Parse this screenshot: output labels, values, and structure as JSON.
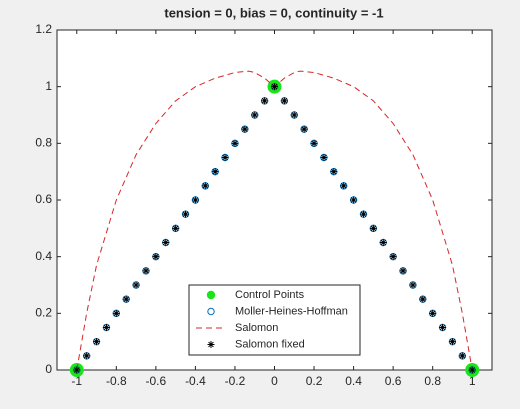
{
  "chart_data": {
    "type": "line",
    "title": "tension = 0, bias = 0, continuity = -1",
    "xlim": [
      -1.1,
      1.1
    ],
    "ylim": [
      0,
      1.2
    ],
    "xticks": [
      -1,
      -0.8,
      -0.6,
      -0.4,
      -0.2,
      0,
      0.2,
      0.4,
      0.6,
      0.8,
      1
    ],
    "yticks": [
      0,
      0.2,
      0.4,
      0.6,
      0.8,
      1,
      1.2
    ],
    "legend": "south",
    "series": [
      {
        "name": "Control Points",
        "color": "#19e619",
        "marker": "filled-circle",
        "line": "none",
        "x": [
          -1,
          0,
          1
        ],
        "values": [
          0,
          1,
          0
        ]
      },
      {
        "name": "Moller-Heines-Hoffman",
        "color": "#0072bd",
        "marker": "circle",
        "line": "none",
        "x": [
          -1,
          -0.95,
          -0.9,
          -0.85,
          -0.8,
          -0.75,
          -0.7,
          -0.65,
          -0.6,
          -0.55,
          -0.5,
          -0.45,
          -0.4,
          -0.35,
          -0.3,
          -0.25,
          -0.2,
          -0.15,
          -0.1,
          -0.05,
          0,
          0.05,
          0.1,
          0.15,
          0.2,
          0.25,
          0.3,
          0.35,
          0.4,
          0.45,
          0.5,
          0.55,
          0.6,
          0.65,
          0.7,
          0.75,
          0.8,
          0.85,
          0.9,
          0.95,
          1
        ],
        "values": [
          0,
          0.05,
          0.1,
          0.15,
          0.2,
          0.25,
          0.3,
          0.35,
          0.4,
          0.45,
          0.5,
          0.55,
          0.6,
          0.65,
          0.7,
          0.75,
          0.8,
          0.85,
          0.9,
          0.95,
          1,
          0.95,
          0.9,
          0.85,
          0.8,
          0.75,
          0.7,
          0.65,
          0.6,
          0.55,
          0.5,
          0.45,
          0.4,
          0.35,
          0.3,
          0.25,
          0.2,
          0.15,
          0.1,
          0.05,
          0
        ]
      },
      {
        "name": "Salomon",
        "color": "#d62728",
        "marker": "none",
        "line": "dashed",
        "x": [
          -1,
          -0.95,
          -0.9,
          -0.8,
          -0.7,
          -0.6,
          -0.5,
          -0.4,
          -0.3,
          -0.2,
          -0.13,
          -0.1,
          -0.05,
          0,
          0.05,
          0.1,
          0.13,
          0.2,
          0.3,
          0.4,
          0.5,
          0.6,
          0.7,
          0.8,
          0.9,
          0.95,
          1
        ],
        "values": [
          0,
          0.2,
          0.37,
          0.6,
          0.76,
          0.87,
          0.95,
          1.0,
          1.03,
          1.05,
          1.055,
          1.05,
          1.03,
          1.0,
          1.03,
          1.05,
          1.055,
          1.05,
          1.03,
          1.0,
          0.95,
          0.87,
          0.76,
          0.6,
          0.37,
          0.2,
          0
        ]
      },
      {
        "name": "Salomon fixed",
        "color": "#000000",
        "marker": "asterisk",
        "line": "none",
        "x": [
          -1,
          -0.95,
          -0.9,
          -0.85,
          -0.8,
          -0.75,
          -0.7,
          -0.65,
          -0.6,
          -0.55,
          -0.5,
          -0.45,
          -0.4,
          -0.35,
          -0.3,
          -0.25,
          -0.2,
          -0.15,
          -0.1,
          -0.05,
          0,
          0.05,
          0.1,
          0.15,
          0.2,
          0.25,
          0.3,
          0.35,
          0.4,
          0.45,
          0.5,
          0.55,
          0.6,
          0.65,
          0.7,
          0.75,
          0.8,
          0.85,
          0.9,
          0.95,
          1
        ],
        "values": [
          0,
          0.05,
          0.1,
          0.15,
          0.2,
          0.25,
          0.3,
          0.35,
          0.4,
          0.45,
          0.5,
          0.55,
          0.6,
          0.65,
          0.7,
          0.75,
          0.8,
          0.85,
          0.9,
          0.95,
          1,
          0.95,
          0.9,
          0.85,
          0.8,
          0.75,
          0.7,
          0.65,
          0.6,
          0.55,
          0.5,
          0.45,
          0.4,
          0.35,
          0.3,
          0.25,
          0.2,
          0.15,
          0.1,
          0.05,
          0
        ]
      }
    ]
  }
}
